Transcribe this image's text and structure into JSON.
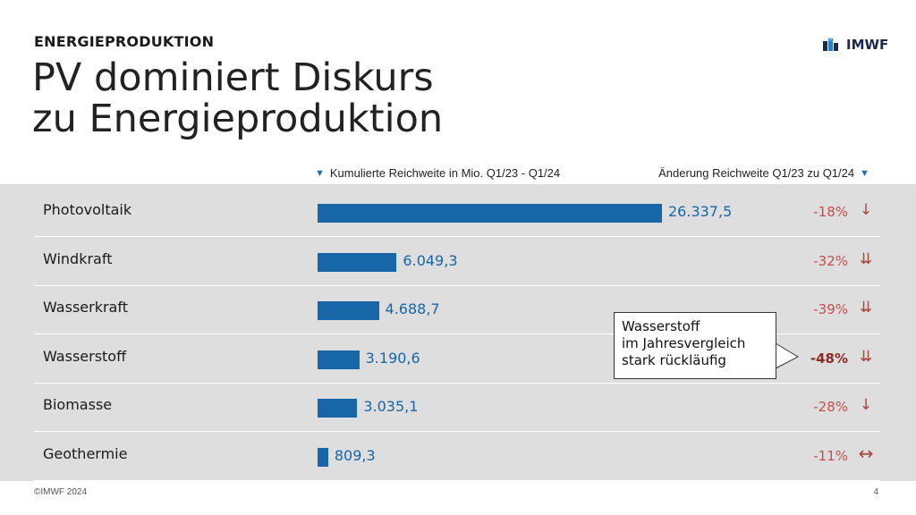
{
  "kicker": "ENERGIEPRODUKTION",
  "headline_line1": "PV dominiert Diskurs",
  "headline_line2": "zu Energieproduktion",
  "logo_text": "IMWF",
  "col_left_header": "Kumulierte Reichweite in Mio. Q1/23 - Q1/24",
  "col_right_header": "Änderung Reichweite Q1/23 zu Q1/24",
  "callout": {
    "line1": "Wasserstoff",
    "line2": "im Jahresvergleich",
    "line3": "stark rückläufig"
  },
  "footer_left": "©IMWF 2024",
  "page_number": "4",
  "colors": {
    "bar": "#1766a8",
    "change_negative": "#c0504d",
    "panel": "#dedede"
  },
  "chart_data": {
    "type": "bar",
    "orientation": "horizontal",
    "categories": [
      "Photovoltaik",
      "Windkraft",
      "Wasserkraft",
      "Wasserstoff",
      "Biomasse",
      "Geothermie"
    ],
    "values": [
      26337.5,
      6049.3,
      4688.7,
      3190.6,
      3035.1,
      809.3
    ],
    "value_labels": [
      "26.337,5",
      "6.049,3",
      "4.688,7",
      "3.190,6",
      "3.035,1",
      "809,3"
    ],
    "changes": [
      "-18%",
      "-32%",
      "-39%",
      "-48%",
      "-28%",
      "-11%"
    ],
    "change_icons": [
      "arrow-down",
      "double-arrow-down",
      "double-arrow-down",
      "double-arrow-down",
      "arrow-down",
      "arrow-left-right"
    ],
    "highlight": "Wasserstoff",
    "grid": false
  }
}
